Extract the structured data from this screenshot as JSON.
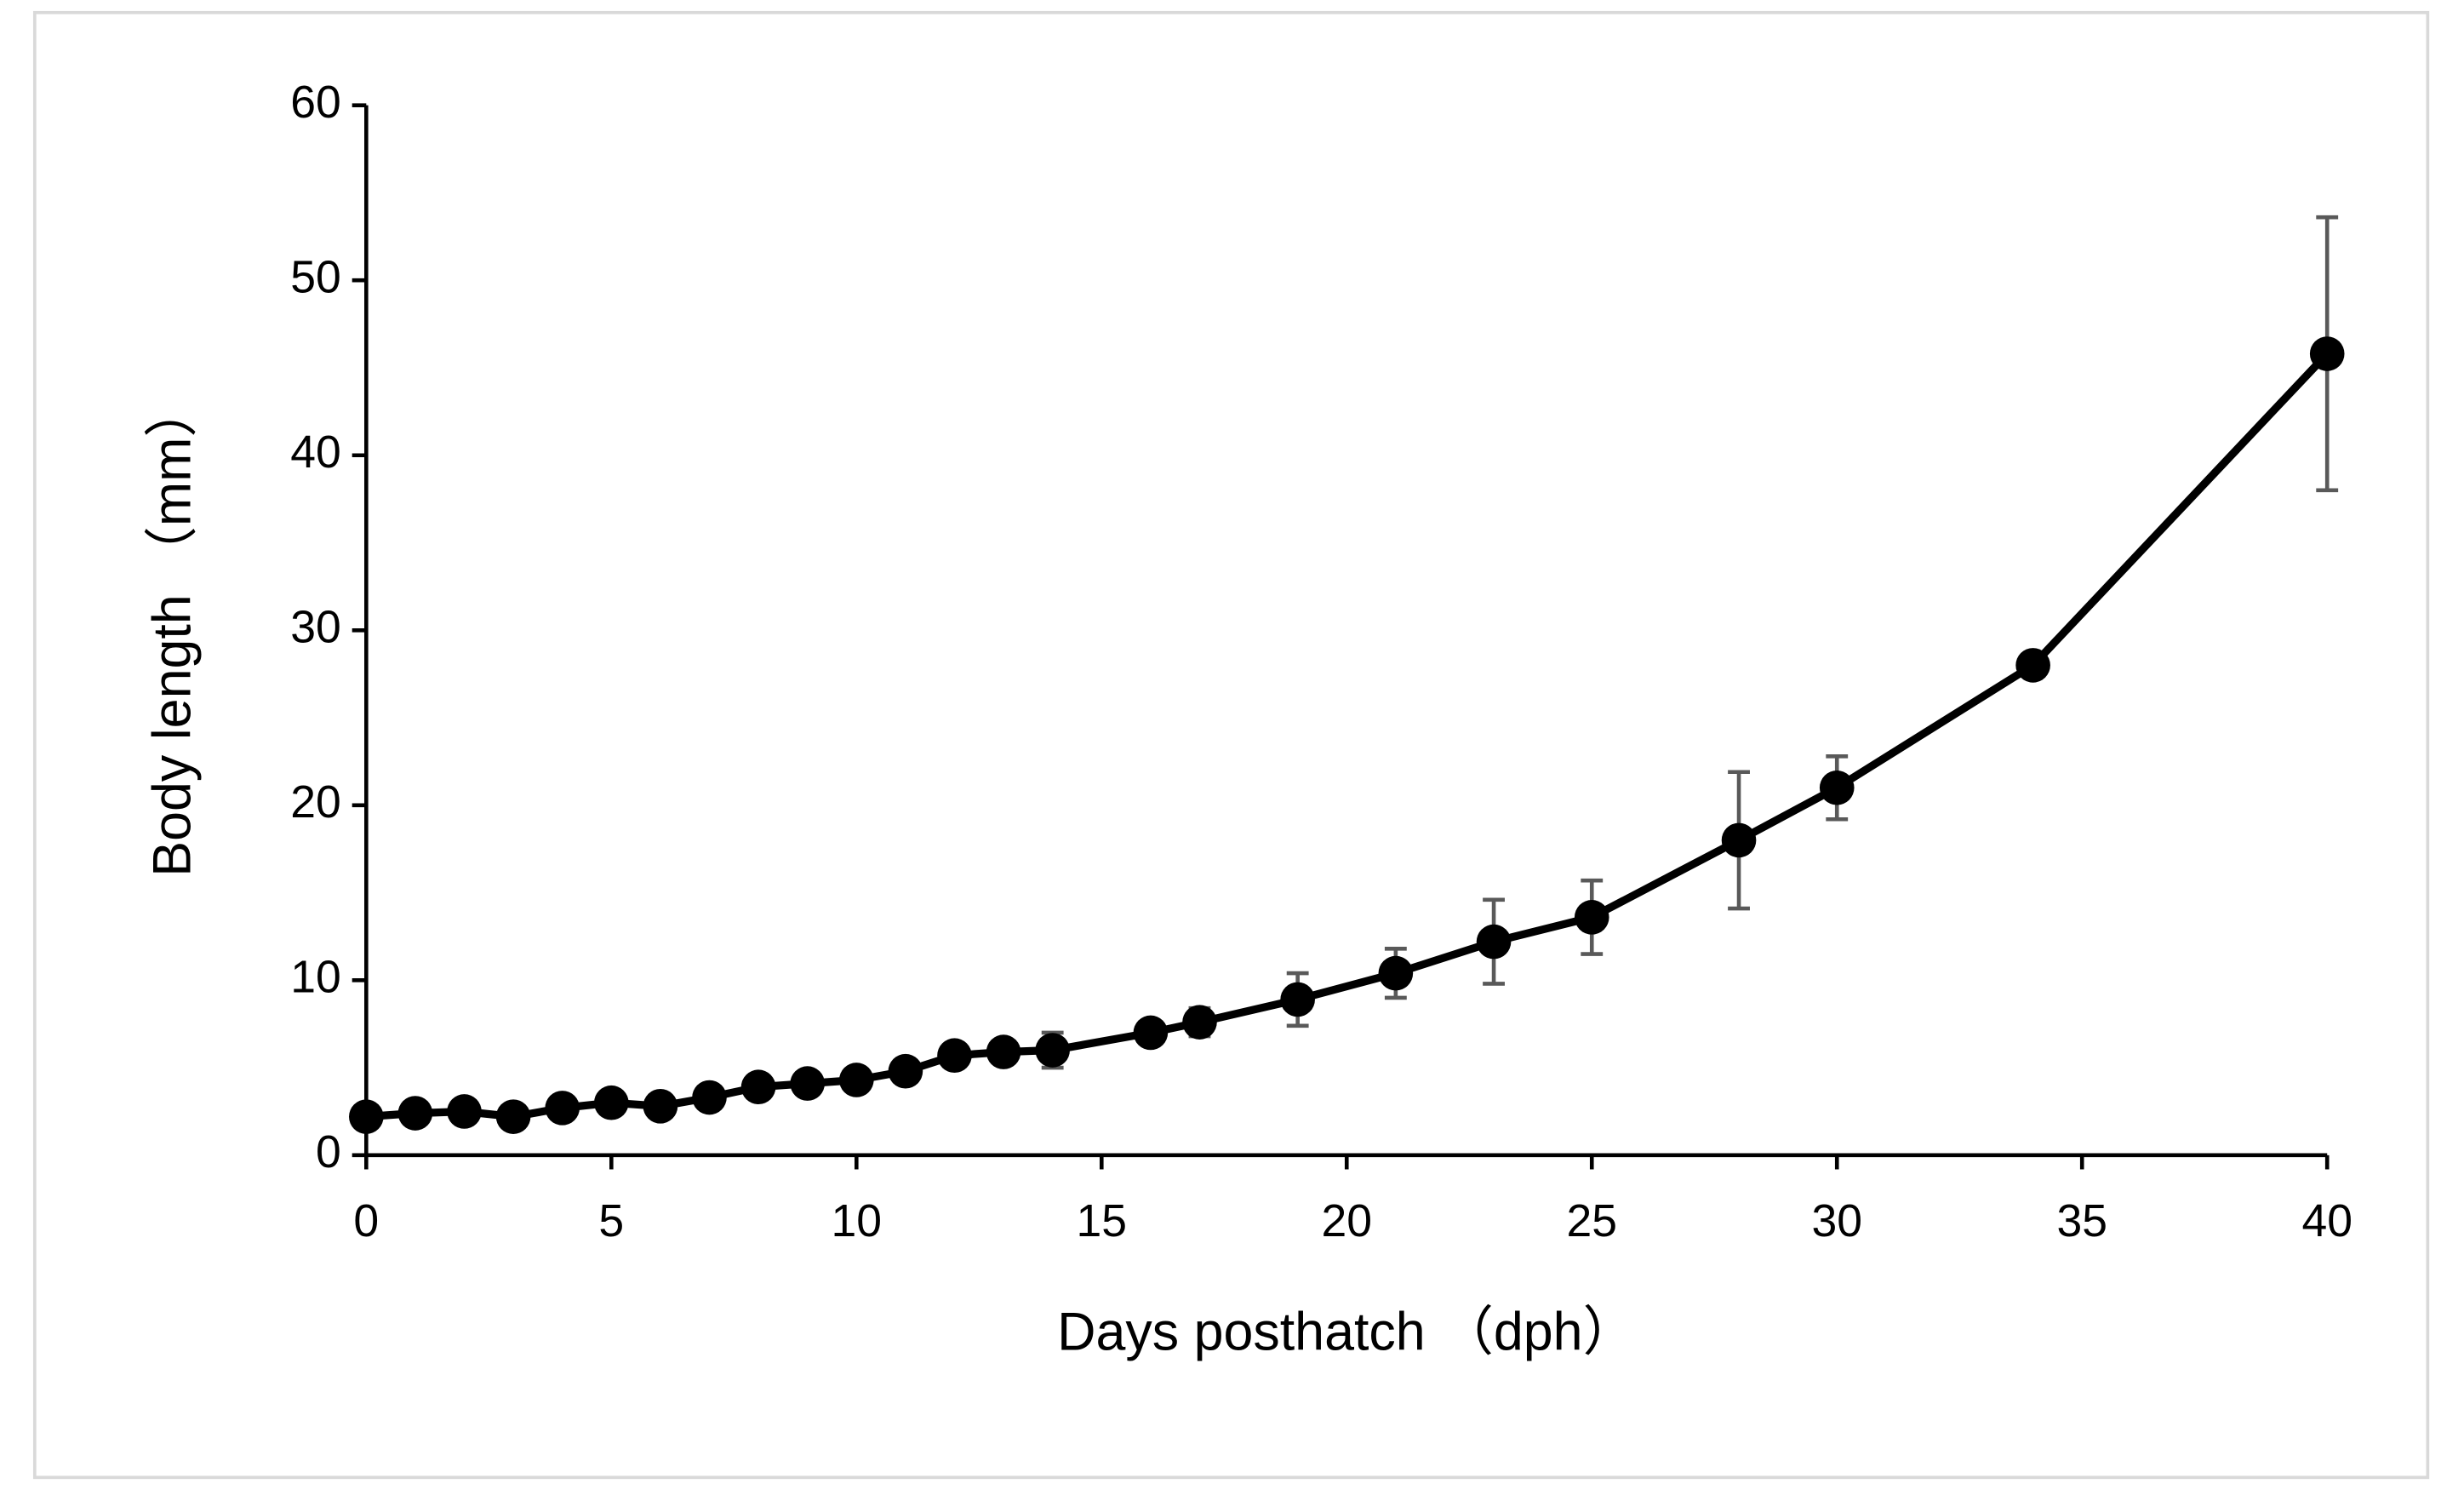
{
  "chart_data": {
    "type": "line",
    "x_label": "Days posthatch （dph）",
    "y_label": "Body length （mm）",
    "x": [
      0,
      1,
      2,
      3,
      4,
      5,
      6,
      7,
      8,
      9,
      10,
      11,
      12,
      13,
      14,
      16,
      17,
      19,
      21,
      23,
      25,
      28,
      30,
      34,
      40
    ],
    "series": [
      {
        "color": "#000000",
        "error_color": "#595959",
        "values": [
          2.2,
          2.4,
          2.5,
          2.2,
          2.7,
          3.0,
          2.8,
          3.3,
          3.9,
          4.1,
          4.3,
          4.8,
          5.7,
          5.9,
          6.0,
          7.0,
          7.6,
          8.9,
          10.4,
          12.2,
          13.6,
          18.0,
          21.0,
          28.0,
          45.8
        ],
        "errors": [
          0.1,
          0.1,
          0.1,
          0.1,
          0.1,
          0.1,
          0.1,
          0.1,
          0.2,
          0.2,
          0.2,
          0.3,
          0.6,
          0.6,
          1.0,
          0.5,
          0.8,
          1.5,
          1.4,
          2.4,
          2.1,
          3.9,
          1.8,
          0.3,
          7.8
        ]
      }
    ],
    "xlim": [
      0,
      40
    ],
    "xticks": [
      0,
      5,
      10,
      15,
      20,
      25,
      30,
      35,
      40
    ],
    "ylim": [
      0,
      60
    ],
    "yticks": [
      0,
      10,
      20,
      30,
      40,
      50,
      60
    ],
    "grid": false
  }
}
